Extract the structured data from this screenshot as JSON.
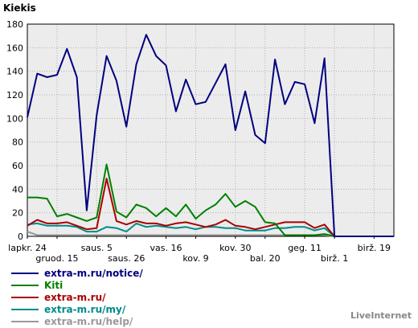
{
  "chart_data": {
    "type": "line",
    "ylabel": "Kiekis",
    "ylim": [
      0,
      180
    ],
    "yticks": [
      0,
      20,
      40,
      60,
      80,
      100,
      120,
      140,
      160,
      180
    ],
    "grid": true,
    "legend_placement": "bottom-left",
    "n_points": 38,
    "xtick_labels": [
      {
        "index": 0,
        "row": 1,
        "label": "lapkr. 24"
      },
      {
        "index": 3,
        "row": 2,
        "label": "gruod. 15"
      },
      {
        "index": 7,
        "row": 1,
        "label": "saus. 5"
      },
      {
        "index": 10,
        "row": 2,
        "label": "saus. 26"
      },
      {
        "index": 14,
        "row": 1,
        "label": "vas. 16"
      },
      {
        "index": 17,
        "row": 2,
        "label": "kov. 9"
      },
      {
        "index": 21,
        "row": 1,
        "label": "kov. 30"
      },
      {
        "index": 24,
        "row": 2,
        "label": "bal. 20"
      },
      {
        "index": 28,
        "row": 1,
        "label": "geg. 11"
      },
      {
        "index": 31,
        "row": 2,
        "label": "birž. 1"
      },
      {
        "index": 35,
        "row": 1,
        "label": "birž. 19"
      }
    ],
    "series": [
      {
        "name": "extra-m.ru/notice/",
        "color": "#000080",
        "values": [
          101,
          138,
          135,
          137,
          159,
          135,
          22,
          103,
          153,
          132,
          93,
          146,
          171,
          153,
          145,
          106,
          133,
          112,
          114,
          130,
          146,
          90,
          123,
          86,
          79,
          150,
          112,
          131,
          129,
          96,
          151,
          0,
          0,
          0,
          0,
          0,
          0,
          0
        ]
      },
      {
        "name": "Kiti",
        "color": "#008000",
        "values": [
          33,
          33,
          32,
          17,
          19,
          16,
          13,
          16,
          61,
          21,
          16,
          27,
          24,
          17,
          24,
          17,
          27,
          15,
          22,
          27,
          36,
          25,
          30,
          25,
          12,
          11,
          1,
          1,
          1,
          1,
          2,
          0,
          0,
          0,
          0,
          0,
          0,
          0
        ]
      },
      {
        "name": "extra-m.ru/",
        "color": "#aa0000",
        "values": [
          9,
          14,
          11,
          11,
          12,
          9,
          6,
          7,
          49,
          13,
          10,
          13,
          11,
          11,
          9,
          11,
          12,
          10,
          8,
          10,
          14,
          9,
          8,
          6,
          8,
          10,
          12,
          12,
          12,
          7,
          10,
          0,
          0,
          0,
          0,
          0,
          0,
          0
        ]
      },
      {
        "name": "extra-m.ru/my/",
        "color": "#008b8b",
        "values": [
          10,
          11,
          9,
          9,
          9,
          8,
          4,
          4,
          8,
          7,
          4,
          11,
          8,
          9,
          8,
          7,
          8,
          6,
          8,
          8,
          7,
          7,
          5,
          5,
          5,
          7,
          7,
          8,
          8,
          5,
          7,
          0,
          0,
          0,
          0,
          0,
          0,
          0
        ]
      },
      {
        "name": "extra-m.ru/help/",
        "color": "#999999",
        "values": [
          4,
          1,
          1,
          1,
          1,
          1,
          1,
          1,
          1,
          1,
          1,
          1,
          1,
          1,
          1,
          1,
          1,
          1,
          1,
          1,
          1,
          1,
          1,
          1,
          1,
          1,
          1,
          1,
          1,
          1,
          1,
          0,
          0,
          0,
          0,
          0,
          0,
          0
        ]
      }
    ]
  },
  "brand": "LiveInternet"
}
